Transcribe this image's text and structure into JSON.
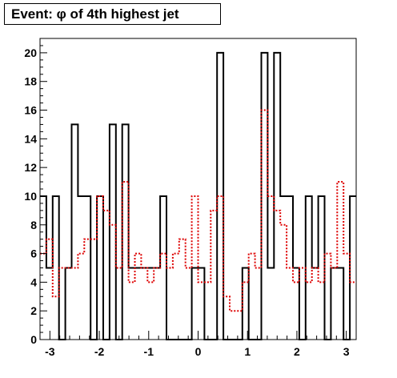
{
  "chart_data": {
    "type": "histogram",
    "title": "Event: φ of 4th highest jet",
    "xlabel": "",
    "ylabel": "",
    "xlim": [
      -3.2,
      3.2
    ],
    "ylim": [
      0,
      21
    ],
    "grid": false,
    "legend": "none",
    "x_ticks": [
      -3,
      -2,
      -1,
      0,
      1,
      2,
      3
    ],
    "y_ticks": [
      0,
      2,
      4,
      6,
      8,
      10,
      12,
      14,
      16,
      18,
      20
    ],
    "bin_width": 0.128,
    "series": [
      {
        "color": "#000000",
        "style": "solid",
        "values": [
          10,
          5,
          10,
          0,
          5,
          15,
          10,
          10,
          0,
          10,
          0,
          15,
          0,
          15,
          5,
          5,
          5,
          5,
          5,
          10,
          0,
          0,
          0,
          0,
          5,
          5,
          0,
          0,
          20,
          0,
          0,
          0,
          5,
          0,
          0,
          20,
          5,
          20,
          10,
          10,
          5,
          0,
          10,
          5,
          10,
          0,
          5,
          5,
          0,
          10
        ]
      },
      {
        "color": "#dd0000",
        "style": "dotted",
        "values": [
          6,
          7,
          3,
          5,
          5,
          5,
          6,
          7,
          7,
          10,
          9,
          8,
          5,
          11,
          4,
          6,
          5,
          4,
          5,
          6,
          5,
          6,
          7,
          5,
          10,
          4,
          4,
          9,
          10,
          3,
          2,
          2,
          4,
          6,
          5,
          16,
          10,
          9,
          8,
          5,
          4,
          5,
          4,
          5,
          4,
          6,
          5,
          11,
          6,
          4
        ]
      }
    ]
  }
}
